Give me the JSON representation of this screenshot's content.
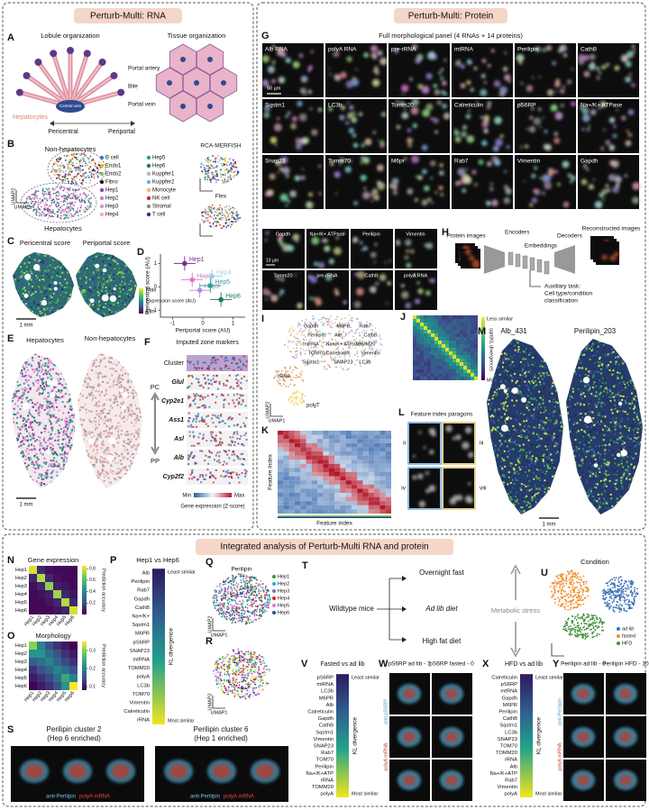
{
  "rna": {
    "title": "Perturb-Multi: RNA",
    "a": {
      "letter": "A",
      "lobule": "Lobule organization",
      "tissue": "Tissue organization",
      "portal_artery": "Portal artery",
      "bile": "Bile",
      "portal_vein": "Portal vein",
      "central_vein": "Central vein",
      "hepatocytes": "Hepatocytes",
      "pericentral": "Pericentral",
      "periportal": "Periportal"
    },
    "b": {
      "letter": "B",
      "non_hep": "Non-hepatocytes",
      "hep": "Hepatocytes",
      "umap2": "UMAP2",
      "umap1": "UMAP1",
      "rca": "RCA-MERFISH",
      "flex": "Flex",
      "legend": [
        {
          "name": "B cell",
          "color": "#3b7dd8"
        },
        {
          "name": "Endo1",
          "color": "#f0b400"
        },
        {
          "name": "Endo2",
          "color": "#7cc576"
        },
        {
          "name": "Fibro",
          "color": "#222222"
        },
        {
          "name": "Hep1",
          "color": "#8e44ad"
        },
        {
          "name": "Hep2",
          "color": "#e377c2"
        },
        {
          "name": "Hep3",
          "color": "#c39bd9"
        },
        {
          "name": "Hep4",
          "color": "#f7a8c8"
        },
        {
          "name": "Hep5",
          "color": "#2aa198"
        },
        {
          "name": "Hep6",
          "color": "#1b7a5a"
        },
        {
          "name": "Kuppfer1",
          "color": "#b5b5b5"
        },
        {
          "name": "Kuppfer2",
          "color": "#6baed6"
        },
        {
          "name": "Monocyte",
          "color": "#fdae6b"
        },
        {
          "name": "NK cell",
          "color": "#d62728"
        },
        {
          "name": "Stromal",
          "color": "#8c8c8c"
        },
        {
          "name": "T cell",
          "color": "#1f3a93"
        }
      ]
    },
    "c": {
      "letter": "C",
      "pericentral": "Pericentral score",
      "periportal": "Periportal score",
      "max": "Max",
      "cbar": "Expression score (AU)",
      "min": "Min",
      "scale": "1 mm"
    },
    "d": {
      "letter": "D",
      "type": "scatter",
      "xlabel": "Periportal score (AU)",
      "ylabel": "Pericentral score (AU)",
      "xlim": [
        -1.4,
        1.4
      ],
      "ylim": [
        -1.3,
        1.4
      ],
      "xticks": [
        -1,
        0,
        1
      ],
      "yticks": [
        -1,
        0,
        1
      ],
      "points": [
        {
          "name": "Hep1",
          "color": "#7b2d8e",
          "x": -0.6,
          "y": 1.0
        },
        {
          "name": "Hep2",
          "color": "#e377c2",
          "x": -0.35,
          "y": 0.3
        },
        {
          "name": "Hep3",
          "color": "#b48ed6",
          "x": -0.1,
          "y": -0.15
        },
        {
          "name": "Hep4",
          "color": "#9ed0e6",
          "x": 0.3,
          "y": 0.45
        },
        {
          "name": "Hep5",
          "color": "#2aa198",
          "x": 0.25,
          "y": 0.05
        },
        {
          "name": "Hep6",
          "color": "#1b7a5a",
          "x": 0.6,
          "y": -0.55
        }
      ]
    },
    "e": {
      "letter": "E",
      "hep": "Hepatocytes",
      "non_hep": "Non-hepatocytes",
      "scale": "1 mm"
    },
    "f": {
      "letter": "F",
      "title": "Imputed zone markers",
      "rows": [
        "Cluster",
        "Glul",
        "Cyp2e1",
        "Ass1",
        "Asl",
        "Alb",
        "Cyp2f2"
      ],
      "pc": "PC",
      "pp": "PP",
      "min": "Min",
      "max": "Max",
      "cbar": "Gene expression (Z-score)"
    }
  },
  "protein": {
    "title": "Perturb-Multi: Protein",
    "g": {
      "letter": "G",
      "subtitle": "Full morphological panel (4 RNAs + 14 proteins)",
      "tiles": [
        "Alb RNA",
        "polyA RNA",
        "pre-rRNA",
        "mtRNA",
        "Perilipin",
        "CathB",
        "Sqstm1",
        "LC3b",
        "Tomm20",
        "Calreticulin",
        "pS6RP",
        "Na+/K+ ATPase",
        "Snap23",
        "Tomm70",
        "M6pr",
        "Rab7",
        "Vimentin",
        "Gapdh"
      ],
      "scale": "50 µm",
      "small_tiles": [
        "Gapdh",
        "Na+/K+ ATPase",
        "Perilipin",
        "Vimentin",
        "Tomm20",
        "pre-rRNA",
        "CathB",
        "polyA RNA"
      ],
      "small_scale": "10 µm"
    },
    "h": {
      "letter": "H",
      "protein_images": "Protein images",
      "encoders": "Encoders",
      "embeddings": "Embeddings",
      "decoders": "Decoders",
      "reconstructed": "Reconstructed images",
      "aux": "Auxiliary task:",
      "aux2": "Cell type/condition",
      "aux3": "classification"
    },
    "i": {
      "letter": "I",
      "words": [
        "Gapdh",
        "M6PR",
        "Rab7",
        "Perilipin",
        "Alb",
        "CathB",
        "mtRNA",
        "Na+/K+ ATPase",
        "TOMM20",
        "TOM70",
        "Calreticulin",
        "Vimentin",
        "Sqstm1",
        "SNAP23",
        "LC3b"
      ],
      "rrna": "rRNA",
      "polyt": "polyT",
      "umap2": "UMAP2",
      "umap1": "UMAP1"
    },
    "j": {
      "letter": "J",
      "less": "Less similar",
      "more": "More similar",
      "cbar": "sqrt(KL divergence)"
    },
    "k": {
      "letter": "K",
      "ylabel": "Feature index",
      "xlabel": "Feature index"
    },
    "l": {
      "letter": "L",
      "title": "Feature index paragons",
      "tiles": [
        "ii",
        "iii",
        "iv",
        "viii"
      ]
    },
    "m": {
      "letter": "M",
      "left": "Alb_431",
      "right": "Perilipin_203",
      "scale": "1 mm"
    }
  },
  "integrated": {
    "title": "Integrated analysis of Perturb-Multi RNA and protein",
    "n": {
      "letter": "N",
      "title": "Gene expression",
      "type": "heatmap",
      "rows": [
        "Hep1",
        "Hep2",
        "Hep3",
        "Hep4",
        "Hep5",
        "Hep6"
      ],
      "cols": [
        "Hep1",
        "Hep2",
        "Hep3",
        "Hep4",
        "Hep5",
        "Hep6"
      ],
      "values": [
        [
          0.8,
          0.1,
          0.03,
          0.02,
          0.02,
          0.01
        ],
        [
          0.1,
          0.75,
          0.1,
          0.04,
          0.02,
          0.02
        ],
        [
          0.03,
          0.1,
          0.7,
          0.08,
          0.05,
          0.02
        ],
        [
          0.02,
          0.04,
          0.08,
          0.72,
          0.1,
          0.05
        ],
        [
          0.02,
          0.02,
          0.05,
          0.1,
          0.75,
          0.1
        ],
        [
          0.01,
          0.02,
          0.02,
          0.05,
          0.1,
          0.8
        ]
      ],
      "zlim": [
        0,
        0.85
      ],
      "zticks": [
        0.2,
        0.4,
        0.6,
        0.8
      ],
      "cbar": "Prediction accuracy"
    },
    "o": {
      "letter": "O",
      "title": "Morphology",
      "type": "heatmap",
      "rows": [
        "Hep1",
        "Hep2",
        "Hep3",
        "Hep4",
        "Hep5",
        "Hep6"
      ],
      "cols": [
        "Hep1",
        "Hep2",
        "Hep3",
        "Hep4",
        "Hep5",
        "Hep6"
      ],
      "values": [
        [
          0.3,
          0.2,
          0.15,
          0.12,
          0.1,
          0.08
        ],
        [
          0.22,
          0.22,
          0.18,
          0.15,
          0.12,
          0.1
        ],
        [
          0.16,
          0.18,
          0.2,
          0.17,
          0.14,
          0.12
        ],
        [
          0.12,
          0.15,
          0.17,
          0.2,
          0.18,
          0.15
        ],
        [
          0.1,
          0.12,
          0.14,
          0.18,
          0.24,
          0.2
        ],
        [
          0.08,
          0.1,
          0.12,
          0.15,
          0.22,
          0.35
        ]
      ],
      "zlim": [
        0.08,
        0.35
      ],
      "zticks": [
        0.1,
        0.2,
        0.3
      ],
      "cbar": "Prediction accuracy"
    },
    "p": {
      "letter": "P",
      "title": "Hep1 vs Hep6",
      "items": [
        "Alb",
        "Perilipin",
        "Rab7",
        "Gapdh",
        "CathB",
        "Na+/K+",
        "Sqstm1",
        "M6PR",
        "pS6RP",
        "SNAP23",
        "mtRNA",
        "TOMM20",
        "polyA",
        "LC3b",
        "TOM70",
        "Vimentin",
        "Calreticulin",
        "rRNA"
      ],
      "least": "Least similar",
      "most": "Most similar",
      "cbar": "KL divergence"
    },
    "q": {
      "letter": "Q",
      "title": "Perilipin",
      "legend": [
        {
          "name": "Hep1",
          "color": "#2ca02c"
        },
        {
          "name": "Hep2",
          "color": "#17becf"
        },
        {
          "name": "Hep3",
          "color": "#9467bd"
        },
        {
          "name": "Hep4",
          "color": "#d62728"
        },
        {
          "name": "Hep5",
          "color": "#e377c2"
        },
        {
          "name": "Hep6",
          "color": "#1f4e9c"
        }
      ],
      "umap2": "UMAP2",
      "umap1": "UMAP1"
    },
    "r": {
      "letter": "R",
      "clusters": [
        "1",
        "2",
        "3",
        "4",
        "5",
        "6",
        "7",
        "8",
        "9",
        "10",
        "11",
        "12"
      ],
      "umap2": "UMAP2",
      "umap1": "UMAP1"
    },
    "t": {
      "letter": "T",
      "mice": "Wildtype mice",
      "fast": "Overnight fast",
      "adlib": "Ad lib diet",
      "hfd": "High fat diet",
      "stress": "Metabolic stress"
    },
    "u": {
      "letter": "U",
      "title": "Condition",
      "legend": [
        {
          "name": "ad lib",
          "color": "#3a6fb5"
        },
        {
          "name": "fasted",
          "color": "#f28e2b"
        },
        {
          "name": "HFD",
          "color": "#3f8f3a"
        }
      ]
    },
    "v": {
      "letter": "V",
      "title": "Fasted vs ad lib",
      "items": [
        "pS6RP",
        "mtRNA",
        "LC3b",
        "M6PR",
        "Alb",
        "Calreticulin",
        "Gapdh",
        "CathB",
        "Sqstm1",
        "Vimentin",
        "SNAP23",
        "Rab7",
        "TOM70",
        "Perilipin",
        "Na+/K+ATP",
        "rRNA",
        "TOMM20",
        "polyA"
      ],
      "least": "Least similar",
      "most": "Most similar",
      "cbar": "KL divergence"
    },
    "w": {
      "letter": "W",
      "left": "pS6RP ad lib - 7",
      "right": "pS6RP fasted - 0",
      "anti": "anti-pS6RP",
      "polya": "polyA mRNA"
    },
    "x": {
      "letter": "X",
      "title": "HFD vs ad lib",
      "items": [
        "Calreticulin",
        "pS6RP",
        "mtRNA",
        "Gapdh",
        "M6PR",
        "Perilipin",
        "CathB",
        "Sqstm1",
        "LC3b",
        "SNAP23",
        "TOM70",
        "TOMM20",
        "rRNA",
        "Alb",
        "Na+/K+ATP",
        "Rab7",
        "Vimentin",
        "polyA"
      ],
      "least": "Least similar",
      "most": "Most similar",
      "cbar": "KL divergence"
    },
    "y": {
      "letter": "Y",
      "left": "Perilipin ad lib - 0",
      "right": "Perilipin HFD - 10",
      "anti": "anti-Perilipin",
      "polya": "polyA mRNA"
    },
    "s": {
      "letter": "S",
      "c2": "Perilipin cluster 2",
      "c2sub": "(Hep 6 enriched)",
      "c6": "Perilipin cluster 6",
      "c6sub": "(Hep 1 enriched)",
      "anti": "anti-Perilipin",
      "polya": "polyA mRNA"
    }
  }
}
